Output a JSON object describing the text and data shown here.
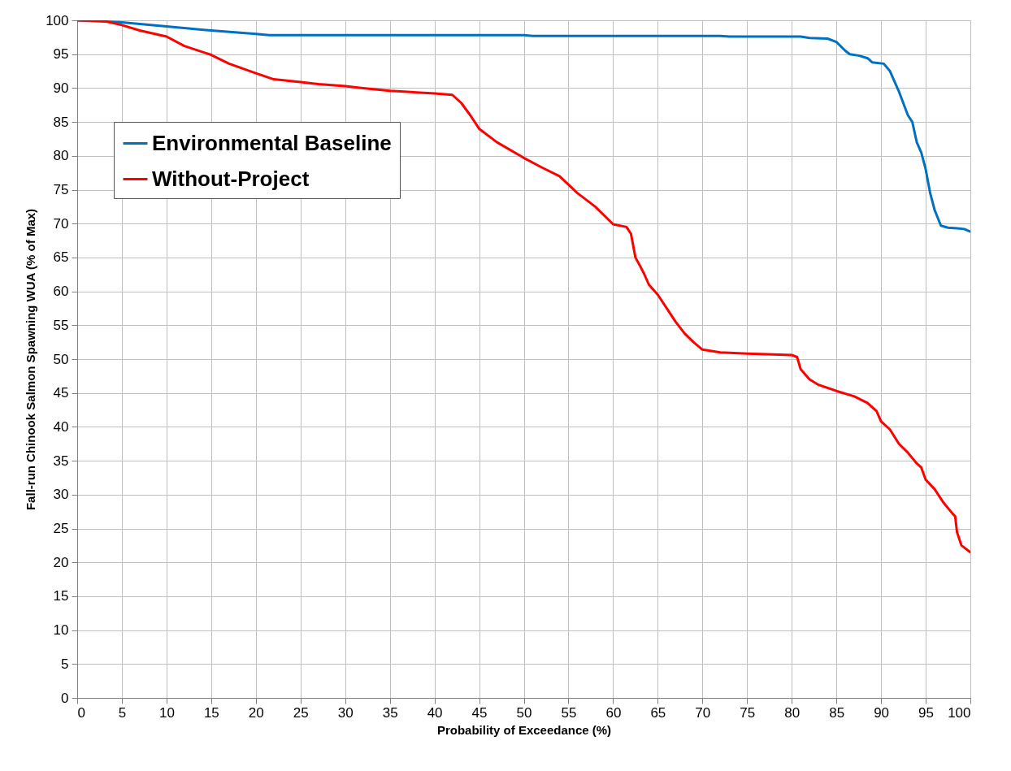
{
  "chart_data": {
    "type": "line",
    "xlabel": "Probability of Exceedance (%)",
    "ylabel": "Fall-run Chinook Salmon Spawning WUA (% of Max)",
    "xlim": [
      0,
      100
    ],
    "ylim": [
      0,
      100
    ],
    "xticks": [
      0,
      5,
      10,
      15,
      20,
      25,
      30,
      35,
      40,
      45,
      50,
      55,
      60,
      65,
      70,
      75,
      80,
      85,
      90,
      95,
      100
    ],
    "yticks": [
      0,
      5,
      10,
      15,
      20,
      25,
      30,
      35,
      40,
      45,
      50,
      55,
      60,
      65,
      70,
      75,
      80,
      85,
      90,
      95,
      100
    ],
    "grid": true,
    "legend": "top left",
    "line_style": "solid",
    "series": [
      {
        "name": "Environmental Baseline",
        "color": "#0070c0",
        "x": [
          0,
          5,
          10,
          15,
          20,
          21.5,
          50,
          51,
          72,
          73,
          81,
          82,
          84,
          85,
          86,
          86.5,
          87.5,
          88.5,
          89,
          90.3,
          91,
          92,
          93,
          93.5,
          94,
          94.5,
          95,
          95.5,
          96,
          96.7,
          97.5,
          98.5,
          99.3,
          100
        ],
        "values": [
          100,
          99.7,
          99.1,
          98.5,
          98.0,
          97.8,
          97.8,
          97.7,
          97.7,
          97.6,
          97.6,
          97.4,
          97.3,
          96.8,
          95.5,
          95,
          94.8,
          94.4,
          93.8,
          93.6,
          92.5,
          89.5,
          86,
          85,
          82,
          80.5,
          78,
          74.5,
          72,
          69.7,
          69.4,
          69.3,
          69.2,
          68.8
        ]
      },
      {
        "name": "Without-Project",
        "color": "#ff0000",
        "x": [
          0,
          3,
          5,
          7,
          10,
          12,
          15,
          17,
          20,
          22,
          25,
          27,
          30,
          32,
          35,
          40,
          42,
          43,
          44,
          45,
          47,
          50,
          52,
          54,
          56,
          58,
          60,
          61.5,
          62,
          62.5,
          63,
          63.5,
          64,
          65,
          66,
          67,
          68,
          69,
          70,
          72,
          75,
          80,
          80.6,
          81,
          82,
          83,
          85,
          87,
          88.5,
          89.5,
          90,
          91,
          92,
          93,
          94,
          94.5,
          95,
          96,
          97,
          98,
          98.3,
          98.5,
          99,
          100
        ],
        "values": [
          100,
          99.9,
          99.3,
          98.5,
          97.6,
          96.2,
          94.9,
          93.6,
          92.2,
          91.3,
          90.9,
          90.6,
          90.3,
          90.0,
          89.6,
          89.2,
          89.0,
          87.8,
          86,
          84,
          82,
          79.7,
          78.3,
          77,
          74.5,
          72.5,
          69.9,
          69.5,
          68.5,
          65,
          63.8,
          62.5,
          61,
          59.5,
          57.5,
          55.5,
          53.8,
          52.5,
          51.4,
          51,
          50.8,
          50.6,
          50.3,
          48.5,
          47,
          46.2,
          45.3,
          44.5,
          43.5,
          42.3,
          40.8,
          39.6,
          37.5,
          36.2,
          34.6,
          34,
          32.2,
          30.8,
          28.8,
          27.2,
          26.8,
          24.5,
          22.5,
          21.5
        ]
      }
    ]
  }
}
